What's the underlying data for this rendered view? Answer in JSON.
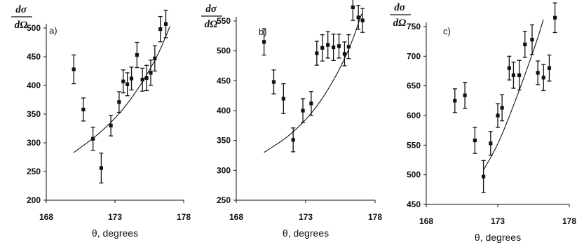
{
  "chart_data": [
    {
      "type": "scatter",
      "panel_label": "a)",
      "ylabel": {
        "numerator": "dσ",
        "denominator": "dΩ"
      },
      "xlabel": "θ, degrees",
      "xlim": [
        168,
        178
      ],
      "ylim": [
        200,
        500
      ],
      "xticks": [
        "168",
        "173",
        "178"
      ],
      "yticks": [
        "200",
        "250",
        "300",
        "350",
        "400",
        "450",
        "500"
      ],
      "points": [
        {
          "x": 170.0,
          "y": 428,
          "err": 25
        },
        {
          "x": 170.7,
          "y": 358,
          "err": 20
        },
        {
          "x": 171.4,
          "y": 307,
          "err": 20
        },
        {
          "x": 172.0,
          "y": 256,
          "err": 26
        },
        {
          "x": 172.7,
          "y": 330,
          "err": 18
        },
        {
          "x": 173.3,
          "y": 371,
          "err": 18
        },
        {
          "x": 173.6,
          "y": 407,
          "err": 20
        },
        {
          "x": 173.9,
          "y": 402,
          "err": 20
        },
        {
          "x": 174.2,
          "y": 412,
          "err": 20
        },
        {
          "x": 174.6,
          "y": 453,
          "err": 22
        },
        {
          "x": 175.0,
          "y": 410,
          "err": 20
        },
        {
          "x": 175.3,
          "y": 413,
          "err": 22
        },
        {
          "x": 175.6,
          "y": 422,
          "err": 22
        },
        {
          "x": 175.9,
          "y": 447,
          "err": 22
        },
        {
          "x": 176.3,
          "y": 498,
          "err": 22
        },
        {
          "x": 176.7,
          "y": 507,
          "err": 24
        }
      ],
      "curve": [
        [
          170.0,
          283
        ],
        [
          172.0,
          318
        ],
        [
          174.0,
          368
        ],
        [
          176.0,
          445
        ],
        [
          177.0,
          503
        ]
      ]
    },
    {
      "type": "scatter",
      "panel_label": "b)",
      "ylabel": {
        "numerator": "dσ",
        "denominator": "dΩ"
      },
      "xlabel": "θ, degrees",
      "xlim": [
        168,
        178
      ],
      "ylim": [
        250,
        550
      ],
      "xticks": [
        "168",
        "173",
        "178"
      ],
      "yticks": [
        "250",
        "300",
        "350",
        "400",
        "450",
        "500",
        "550"
      ],
      "points": [
        {
          "x": 170.0,
          "y": 515,
          "err": 22
        },
        {
          "x": 170.7,
          "y": 448,
          "err": 20
        },
        {
          "x": 171.4,
          "y": 420,
          "err": 25
        },
        {
          "x": 172.1,
          "y": 351,
          "err": 20
        },
        {
          "x": 172.8,
          "y": 400,
          "err": 20
        },
        {
          "x": 173.4,
          "y": 412,
          "err": 20
        },
        {
          "x": 173.8,
          "y": 496,
          "err": 20
        },
        {
          "x": 174.2,
          "y": 505,
          "err": 22
        },
        {
          "x": 174.6,
          "y": 510,
          "err": 22
        },
        {
          "x": 175.0,
          "y": 506,
          "err": 22
        },
        {
          "x": 175.4,
          "y": 508,
          "err": 20
        },
        {
          "x": 175.8,
          "y": 495,
          "err": 20
        },
        {
          "x": 176.1,
          "y": 507,
          "err": 20
        },
        {
          "x": 176.4,
          "y": 573,
          "err": 22
        },
        {
          "x": 176.8,
          "y": 556,
          "err": 20
        },
        {
          "x": 177.1,
          "y": 551,
          "err": 20
        }
      ],
      "curve": [
        [
          170.0,
          330
        ],
        [
          172.0,
          360
        ],
        [
          174.0,
          410
        ],
        [
          176.0,
          492
        ],
        [
          177.3,
          580
        ]
      ]
    },
    {
      "type": "scatter",
      "panel_label": "c)",
      "ylabel": {
        "numerator": "dσ",
        "denominator": "dΩ"
      },
      "xlabel": "θ, degrees",
      "xlim": [
        168,
        178
      ],
      "ylim": [
        450,
        750
      ],
      "xticks": [
        "168",
        "173",
        "178"
      ],
      "yticks": [
        "450",
        "500",
        "550",
        "600",
        "650",
        "700",
        "750"
      ],
      "points": [
        {
          "x": 170.0,
          "y": 625,
          "err": 20
        },
        {
          "x": 170.7,
          "y": 634,
          "err": 22
        },
        {
          "x": 171.4,
          "y": 558,
          "err": 22
        },
        {
          "x": 172.0,
          "y": 497,
          "err": 27
        },
        {
          "x": 172.5,
          "y": 553,
          "err": 20
        },
        {
          "x": 173.0,
          "y": 600,
          "err": 20
        },
        {
          "x": 173.3,
          "y": 613,
          "err": 22
        },
        {
          "x": 173.8,
          "y": 680,
          "err": 20
        },
        {
          "x": 174.1,
          "y": 668,
          "err": 22
        },
        {
          "x": 174.5,
          "y": 668,
          "err": 25
        },
        {
          "x": 174.9,
          "y": 720,
          "err": 22
        },
        {
          "x": 175.4,
          "y": 728,
          "err": 25
        },
        {
          "x": 175.8,
          "y": 672,
          "err": 20
        },
        {
          "x": 176.2,
          "y": 664,
          "err": 22
        },
        {
          "x": 176.6,
          "y": 680,
          "err": 22
        },
        {
          "x": 177.0,
          "y": 765,
          "err": 25
        }
      ],
      "curve": [
        [
          172.0,
          508
        ],
        [
          173.0,
          550
        ],
        [
          174.0,
          610
        ],
        [
          175.0,
          675
        ],
        [
          176.0,
          745
        ],
        [
          176.5,
          790
        ]
      ]
    }
  ]
}
